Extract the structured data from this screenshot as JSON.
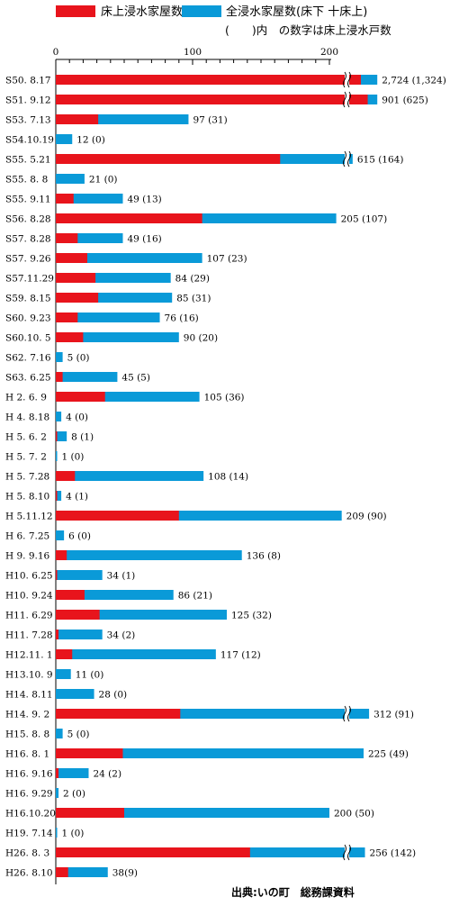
{
  "legend": {
    "series1": "床上浸水家屋数",
    "series2": "全浸水家屋数(床下 十床上)",
    "note": "(　　)内　の数字は床上浸水戸数"
  },
  "source": "出典:いの町　総務課資料",
  "colors": {
    "floor_above": "#e8141c",
    "total": "#0a9ad8",
    "axis": "#000000"
  },
  "chart_data": {
    "type": "bar",
    "orientation": "horizontal",
    "stacked": true,
    "xlim": [
      0,
      200
    ],
    "xticks": [
      "0",
      "100",
      "200"
    ],
    "rows": [
      {
        "date": "S50. 8.17",
        "above": 1324,
        "total": 2724,
        "label": "2,724 (1,324)",
        "broken": true,
        "drawAbove": 223,
        "drawTotal": 235
      },
      {
        "date": "S51. 9.12",
        "above": 625,
        "total": 901,
        "label": "901 (625)",
        "broken": true,
        "drawAbove": 228,
        "drawTotal": 235
      },
      {
        "date": "S53. 7.13",
        "above": 31,
        "total": 97,
        "label": "97 (31)"
      },
      {
        "date": "S54.10.19",
        "above": 0,
        "total": 12,
        "label": "12 (0)"
      },
      {
        "date": "S55. 5.21",
        "above": 164,
        "total": 615,
        "label": "615 (164)",
        "broken": true,
        "drawAbove": 164,
        "drawTotal": 217
      },
      {
        "date": "S55. 8. 8",
        "above": 0,
        "total": 21,
        "label": "21 (0)"
      },
      {
        "date": "S55. 9.11",
        "above": 13,
        "total": 49,
        "label": "49 (13)"
      },
      {
        "date": "S56. 8.28",
        "above": 107,
        "total": 205,
        "label": "205 (107)"
      },
      {
        "date": "S57. 8.28",
        "above": 16,
        "total": 49,
        "label": "49 (16)"
      },
      {
        "date": "S57. 9.26",
        "above": 23,
        "total": 107,
        "label": "107 (23)"
      },
      {
        "date": "S57.11.29",
        "above": 29,
        "total": 84,
        "label": "84 (29)"
      },
      {
        "date": "S59. 8.15",
        "above": 31,
        "total": 85,
        "label": "85 (31)"
      },
      {
        "date": "S60. 9.23",
        "above": 16,
        "total": 76,
        "label": "76 (16)"
      },
      {
        "date": "S60.10. 5",
        "above": 20,
        "total": 90,
        "label": "90 (20)"
      },
      {
        "date": "S62. 7.16",
        "above": 0,
        "total": 5,
        "label": "5 (0)"
      },
      {
        "date": "S63. 6.25",
        "above": 5,
        "total": 45,
        "label": "45 (5)"
      },
      {
        "date": "H 2. 6. 9",
        "above": 36,
        "total": 105,
        "label": "105 (36)"
      },
      {
        "date": "H 4. 8.18",
        "above": 0,
        "total": 4,
        "label": "4 (0)"
      },
      {
        "date": "H 5. 6. 2",
        "above": 1,
        "total": 8,
        "label": "8 (1)"
      },
      {
        "date": "H 5. 7. 2",
        "above": 0,
        "total": 1,
        "label": "1 (0)"
      },
      {
        "date": "H 5. 7.28",
        "above": 14,
        "total": 108,
        "label": "108 (14)"
      },
      {
        "date": "H 5. 8.10",
        "above": 1,
        "total": 4,
        "label": "4 (1)"
      },
      {
        "date": "H 5.11.12",
        "above": 90,
        "total": 209,
        "label": "209 (90)"
      },
      {
        "date": "H 6. 7.25",
        "above": 0,
        "total": 6,
        "label": "6 (0)"
      },
      {
        "date": "H 9. 9.16",
        "above": 8,
        "total": 136,
        "label": "136 (8)"
      },
      {
        "date": "H10. 6.25",
        "above": 1,
        "total": 34,
        "label": "34 (1)"
      },
      {
        "date": "H10. 9.24",
        "above": 21,
        "total": 86,
        "label": "86 (21)"
      },
      {
        "date": "H11. 6.29",
        "above": 32,
        "total": 125,
        "label": "125 (32)"
      },
      {
        "date": "H11. 7.28",
        "above": 2,
        "total": 34,
        "label": "34 (2)"
      },
      {
        "date": "H12.11. 1",
        "above": 12,
        "total": 117,
        "label": "117 (12)"
      },
      {
        "date": "H13.10. 9",
        "above": 0,
        "total": 11,
        "label": "11 (0)"
      },
      {
        "date": "H14. 8.11",
        "above": 0,
        "total": 28,
        "label": "28 (0)"
      },
      {
        "date": "H14. 9. 2",
        "above": 91,
        "total": 312,
        "label": "312 (91)",
        "broken": true,
        "drawAbove": 91,
        "drawTotal": 229
      },
      {
        "date": "H15. 8. 8",
        "above": 0,
        "total": 5,
        "label": "5 (0)"
      },
      {
        "date": "H16. 8. 1",
        "above": 49,
        "total": 225,
        "label": "225 (49)"
      },
      {
        "date": "H16. 9.16",
        "above": 2,
        "total": 24,
        "label": "24 (2)"
      },
      {
        "date": "H16. 9.29",
        "above": 0,
        "total": 2,
        "label": "2 (0)"
      },
      {
        "date": "H16.10.20",
        "above": 50,
        "total": 200,
        "label": "200 (50)"
      },
      {
        "date": "H19. 7.14",
        "above": 0,
        "total": 1,
        "label": "1 (0)"
      },
      {
        "date": "H26. 8. 3",
        "above": 142,
        "total": 256,
        "label": "256 (142)",
        "broken": true,
        "drawAbove": 142,
        "drawTotal": 226
      },
      {
        "date": "H26. 8.10",
        "above": 9,
        "total": 38,
        "label": "38(9)"
      }
    ]
  }
}
